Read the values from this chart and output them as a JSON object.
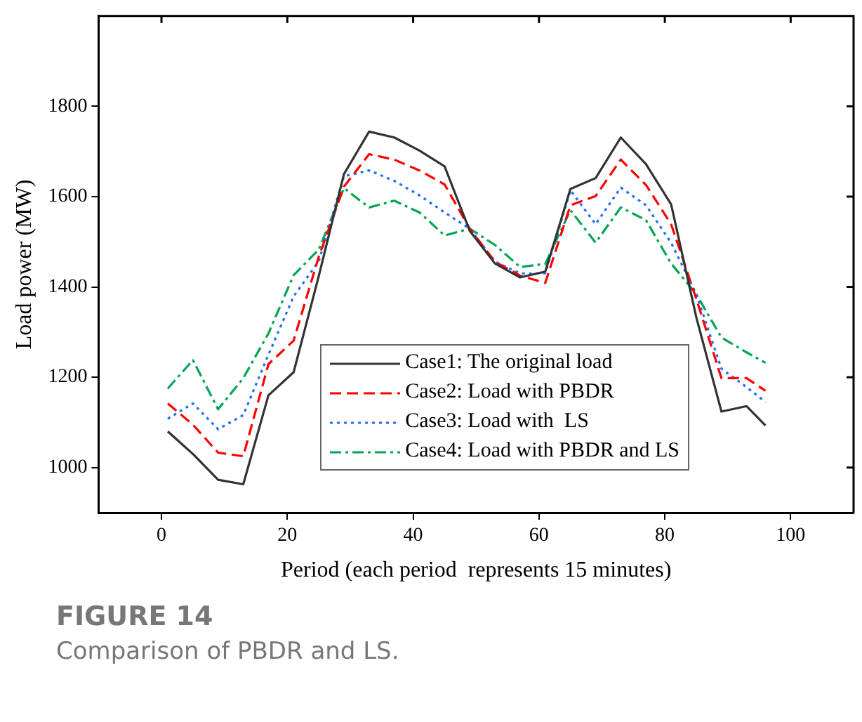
{
  "chart_data": {
    "type": "line",
    "title": "FIGURE 14",
    "subtitle": "Comparison of PBDR and LS.",
    "xlabel": "Period (each period  represents 15 minutes)",
    "ylabel": "Load power (MW)",
    "x": [
      1,
      5,
      9,
      13,
      17,
      21,
      25,
      29,
      33,
      37,
      41,
      45,
      49,
      53,
      57,
      61,
      65,
      69,
      73,
      77,
      81,
      85,
      89,
      93,
      96
    ],
    "series": [
      {
        "name": "Case1: The original load",
        "color": "#333333",
        "line_style": "solid",
        "values": [
          1080,
          1030,
          973,
          963,
          1160,
          1211,
          1424,
          1650,
          1744,
          1731,
          1702,
          1667,
          1524,
          1452,
          1421,
          1434,
          1617,
          1641,
          1731,
          1672,
          1583,
          1333,
          1124,
          1136,
          1093
        ]
      },
      {
        "name": "Case2: Load with PBDR",
        "color": "#ff0000",
        "line_style": "dashed",
        "values": [
          1142,
          1095,
          1033,
          1025,
          1229,
          1281,
          1467,
          1622,
          1694,
          1682,
          1658,
          1627,
          1529,
          1456,
          1425,
          1409,
          1581,
          1601,
          1682,
          1626,
          1539,
          1374,
          1198,
          1198,
          1170
        ]
      },
      {
        "name": "Case3: Load with  LS",
        "color": "#1f6fff",
        "line_style": "dotted",
        "values": [
          1108,
          1142,
          1085,
          1116,
          1250,
          1379,
          1457,
          1645,
          1658,
          1635,
          1603,
          1565,
          1529,
          1456,
          1430,
          1430,
          1614,
          1539,
          1620,
          1581,
          1498,
          1384,
          1219,
          1178,
          1145
        ]
      },
      {
        "name": "Case4: Load with PBDR and LS",
        "color": "#00a651",
        "line_style": "dashdot",
        "values": [
          1175,
          1238,
          1129,
          1198,
          1297,
          1426,
          1483,
          1619,
          1576,
          1591,
          1565,
          1514,
          1529,
          1493,
          1444,
          1451,
          1570,
          1498,
          1576,
          1548,
          1452,
          1384,
          1288,
          1255,
          1232
        ]
      }
    ],
    "xlim": [
      -10,
      110
    ],
    "xticks": [
      0,
      20,
      40,
      60,
      80,
      100
    ],
    "ylim": [
      900,
      2000
    ],
    "yticks": [
      1000,
      1200,
      1400,
      1600,
      1800
    ],
    "grid": false,
    "legend": "bottom",
    "marker": "none"
  }
}
